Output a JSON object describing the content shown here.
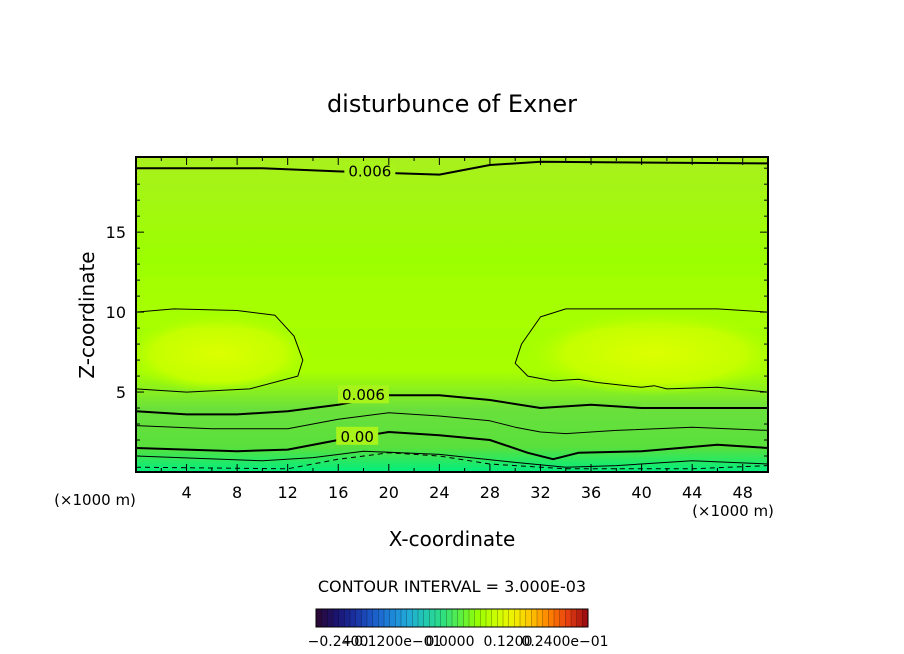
{
  "chart_data": {
    "type": "contour",
    "title": "disturbunce of Exner",
    "xlabel": "X-coordinate",
    "ylabel": "Z-coordinate",
    "x_unit": "(×1000 m)",
    "y_unit": "(×1000 m)",
    "xlim": [
      0,
      50
    ],
    "ylim": [
      0,
      19.7
    ],
    "x_ticks": [
      "4",
      "8",
      "12",
      "16",
      "20",
      "24",
      "28",
      "32",
      "36",
      "40",
      "44",
      "48"
    ],
    "x_tick_values": [
      4,
      8,
      12,
      16,
      20,
      24,
      28,
      32,
      36,
      40,
      44,
      48
    ],
    "y_ticks": [
      "5",
      "10",
      "15"
    ],
    "y_tick_values": [
      5,
      10,
      15
    ],
    "contour_interval_text": "CONTOUR INTERVAL = 3.000E-03",
    "contour_labels": [
      {
        "text": "0.006",
        "x": 18.5,
        "y": 18.8
      },
      {
        "text": "0.006",
        "x": 18.0,
        "y": 4.8
      },
      {
        "text": "0.00",
        "x": 17.5,
        "y": 2.2
      }
    ],
    "contour_lines": [
      {
        "style": "thick",
        "points": [
          [
            0,
            19.0
          ],
          [
            10,
            19.0
          ],
          [
            16,
            18.8
          ],
          [
            24,
            18.6
          ],
          [
            28,
            19.2
          ],
          [
            32,
            19.4
          ],
          [
            50,
            19.3
          ]
        ]
      },
      {
        "style": "thin",
        "points": [
          [
            0,
            10.0
          ],
          [
            3,
            10.2
          ],
          [
            8,
            10.1
          ],
          [
            11,
            9.8
          ],
          [
            12.5,
            8.5
          ],
          [
            13.2,
            7.0
          ],
          [
            12.8,
            6.0
          ],
          [
            9,
            5.2
          ],
          [
            4,
            5.0
          ],
          [
            0,
            5.2
          ]
        ]
      },
      {
        "style": "thin",
        "points": [
          [
            50,
            10.0
          ],
          [
            46,
            10.2
          ],
          [
            40,
            10.2
          ],
          [
            34,
            10.2
          ],
          [
            32,
            9.7
          ],
          [
            30.5,
            8.0
          ],
          [
            30.0,
            6.8
          ],
          [
            31.0,
            6.0
          ],
          [
            33,
            5.7
          ],
          [
            35,
            5.8
          ],
          [
            36.5,
            5.6
          ],
          [
            40,
            5.3
          ],
          [
            41,
            5.4
          ],
          [
            42,
            5.2
          ],
          [
            46,
            5.3
          ],
          [
            50,
            5.0
          ]
        ]
      },
      {
        "style": "thick",
        "points": [
          [
            0,
            3.8
          ],
          [
            4,
            3.6
          ],
          [
            8,
            3.6
          ],
          [
            12,
            3.8
          ],
          [
            16,
            4.2
          ],
          [
            20,
            4.8
          ],
          [
            24,
            4.8
          ],
          [
            28,
            4.5
          ],
          [
            32,
            4.0
          ],
          [
            36,
            4.2
          ],
          [
            40,
            4.0
          ],
          [
            44,
            4.0
          ],
          [
            50,
            4.0
          ]
        ]
      },
      {
        "style": "thin",
        "points": [
          [
            0,
            2.9
          ],
          [
            6,
            2.7
          ],
          [
            12,
            2.7
          ],
          [
            16,
            3.3
          ],
          [
            20,
            3.7
          ],
          [
            24,
            3.5
          ],
          [
            28,
            3.2
          ],
          [
            30,
            2.8
          ],
          [
            32,
            2.5
          ],
          [
            34,
            2.4
          ],
          [
            38,
            2.6
          ],
          [
            44,
            2.8
          ],
          [
            50,
            2.6
          ]
        ]
      },
      {
        "style": "thick",
        "points": [
          [
            0,
            1.5
          ],
          [
            8,
            1.3
          ],
          [
            12,
            1.4
          ],
          [
            16,
            2.0
          ],
          [
            20,
            2.5
          ],
          [
            24,
            2.3
          ],
          [
            28,
            2.0
          ],
          [
            31,
            1.2
          ],
          [
            33,
            0.8
          ],
          [
            35,
            1.2
          ],
          [
            40,
            1.3
          ],
          [
            46,
            1.7
          ],
          [
            50,
            1.5
          ]
        ]
      },
      {
        "style": "thin",
        "points": [
          [
            0,
            1.0
          ],
          [
            10,
            0.7
          ],
          [
            14,
            0.9
          ],
          [
            18,
            1.3
          ],
          [
            24,
            1.1
          ],
          [
            30,
            0.6
          ],
          [
            34,
            0.3
          ],
          [
            38,
            0.4
          ],
          [
            44,
            0.7
          ],
          [
            50,
            0.5
          ]
        ]
      },
      {
        "style": "dashed",
        "points": [
          [
            0,
            0.3
          ],
          [
            12,
            0.2
          ],
          [
            16,
            0.8
          ],
          [
            20,
            1.2
          ],
          [
            24,
            1.0
          ],
          [
            28,
            0.5
          ],
          [
            34,
            0.2
          ],
          [
            44,
            0.2
          ],
          [
            50,
            0.4
          ]
        ]
      }
    ],
    "colorbar": {
      "colors": [
        "#2a0a3a",
        "#1a1470",
        "#1a2fa0",
        "#1b58c8",
        "#1e82d8",
        "#20a9d8",
        "#22c9b0",
        "#2fe080",
        "#5cf040",
        "#9aff00",
        "#ccff00",
        "#f2f000",
        "#ffc000",
        "#ff8000",
        "#e84010",
        "#a01010"
      ],
      "labels_text": [
        "−0.2400",
        "−0.1200e−01",
        "0.0000",
        "0.1200",
        "0.2400e−01"
      ]
    },
    "field_colors": {
      "top": "#a8f01e",
      "mid": "#9cff00",
      "bright": "#d6ff00",
      "lower": "#5ae03c",
      "bottom": "#00ee80"
    }
  }
}
